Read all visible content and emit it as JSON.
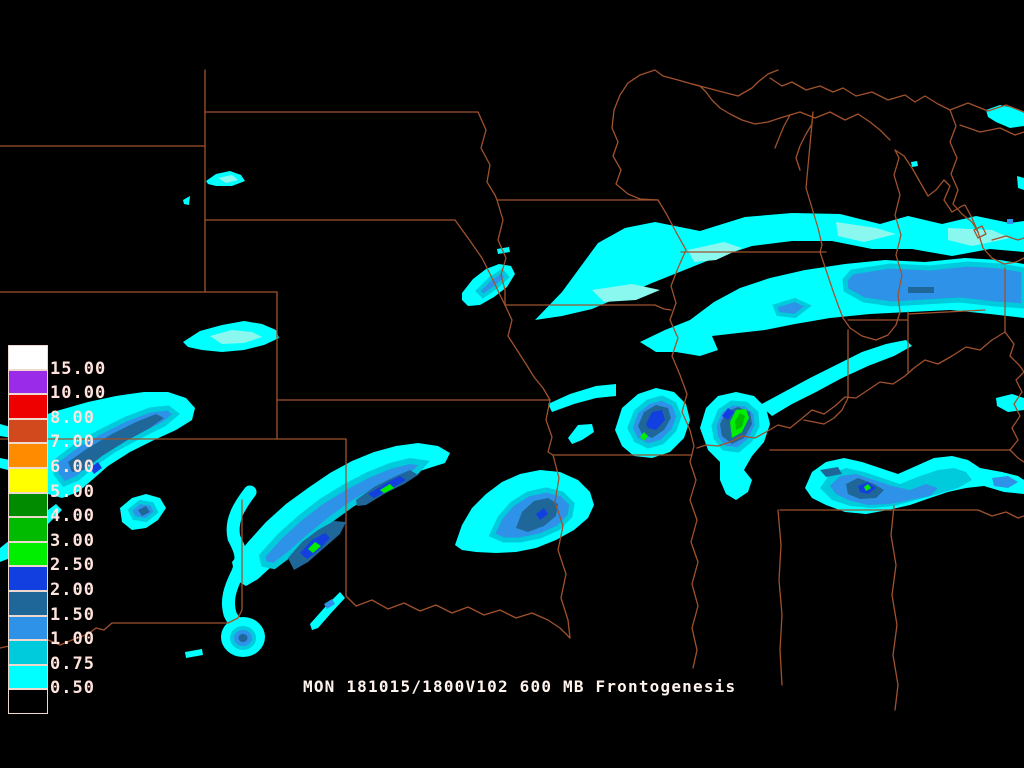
{
  "title": {
    "text": "MON 181015/1800V102 600 MB Frontogenesis"
  },
  "field": {
    "run_label": "MON 181015/1800V102",
    "level": "600 MB",
    "parameter": "Frontogenesis"
  },
  "legend": {
    "labels": [
      "15.00",
      "10.00",
      "8.00",
      "7.00",
      "6.00",
      "5.00",
      "4.00",
      "3.00",
      "2.50",
      "2.00",
      "1.50",
      "1.00",
      "0.75",
      "0.50"
    ],
    "blocks": [
      "c1500",
      "c1000",
      "c800",
      "c700",
      "c600",
      "c500",
      "c400",
      "c300",
      "c250",
      "c200",
      "c150",
      "c100",
      "c075",
      "c050",
      "empty"
    ]
  },
  "palette": {
    "c050": "#00FFFF",
    "c075": "#00CBDC",
    "cPale": "#8BF8EF",
    "c100": "#2E93E8",
    "c150": "#1F6699",
    "c200": "#1240E0",
    "c250": "#00EE00",
    "c300": "#00BB00",
    "c400": "#008B00",
    "c500": "#FFFF00",
    "c600": "#FF8C00",
    "c700": "#D2491E",
    "c800": "#EE0000",
    "c1000": "#9A2BE8",
    "c1500": "#FFFFFF"
  },
  "map": {
    "background": "#000000",
    "border_color": "#A0522D",
    "outline_color": "#EFD9CF",
    "label_color": "#FFE3DC",
    "title_color": "#FFF3ED"
  }
}
